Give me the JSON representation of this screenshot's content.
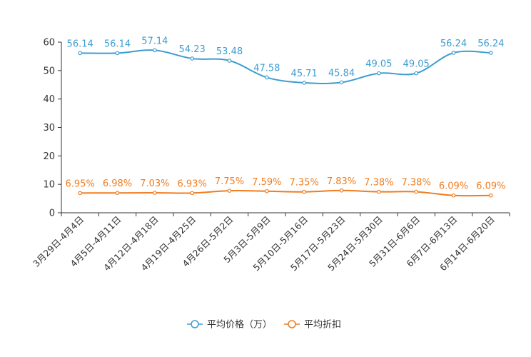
{
  "chart_data": {
    "type": "line",
    "title": "",
    "xlabel": "",
    "ylabel": "",
    "ylim": [
      0,
      60
    ],
    "yticks": [
      0,
      10,
      20,
      30,
      40,
      50,
      60
    ],
    "grid": false,
    "legend_position": "bottom-center",
    "categories": [
      "3月29日-4月4日",
      "4月5日-4月11日",
      "4月12日-4月18日",
      "4月19日-4月25日",
      "4月26日-5月2日",
      "5月3日-5月9日",
      "5月10日-5月16日",
      "5月17日-5月23日",
      "5月24日-5月30日",
      "5月31日-6月6日",
      "6月7日-6月13日",
      "6月14日-6月20日"
    ],
    "series": [
      {
        "name": "平均价格（万）",
        "color": "#3d9dd0",
        "values": [
          56.14,
          56.14,
          57.14,
          54.23,
          53.48,
          47.58,
          45.71,
          45.84,
          49.05,
          49.05,
          56.24,
          56.24
        ],
        "labels": [
          "56.14",
          "56.14",
          "57.14",
          "54.23",
          "53.48",
          "47.58",
          "45.71",
          "45.84",
          "49.05",
          "49.05",
          "56.24",
          "56.24"
        ]
      },
      {
        "name": "平均折扣",
        "color": "#f07c1f",
        "values": [
          6.95,
          6.98,
          7.03,
          6.93,
          7.75,
          7.59,
          7.35,
          7.83,
          7.38,
          7.38,
          6.09,
          6.09
        ],
        "labels": [
          "6.95%",
          "6.98%",
          "7.03%",
          "6.93%",
          "7.75%",
          "7.59%",
          "7.35%",
          "7.83%",
          "7.38%",
          "7.38%",
          "6.09%",
          "6.09%"
        ]
      }
    ]
  }
}
